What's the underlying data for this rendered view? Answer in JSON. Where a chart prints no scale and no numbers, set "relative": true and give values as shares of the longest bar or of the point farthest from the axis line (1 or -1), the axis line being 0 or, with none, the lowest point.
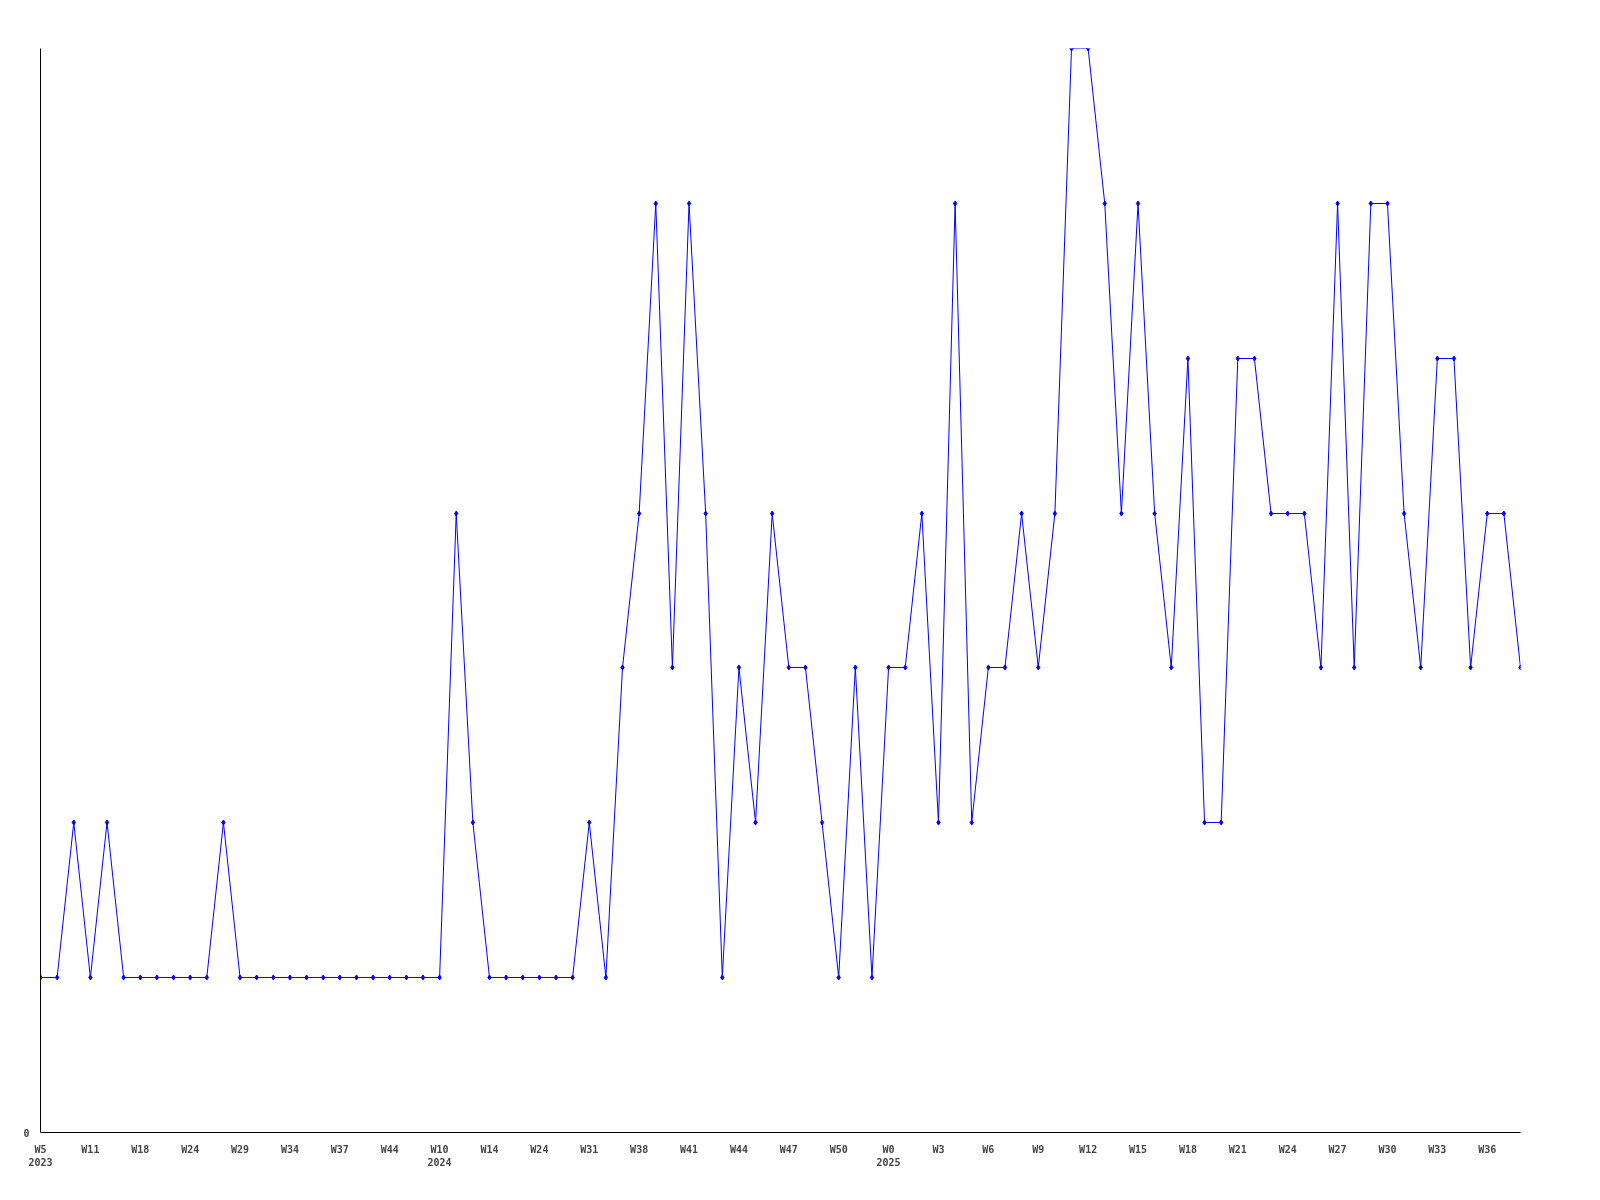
{
  "chart_data": {
    "type": "line",
    "relative": true,
    "color": "#0000ff",
    "marker": "diamond",
    "grid": false,
    "annotations": [
      "0"
    ],
    "categories": [
      "W5\n2023",
      null,
      null,
      "W11",
      null,
      null,
      "W18",
      null,
      null,
      "W24",
      null,
      null,
      "W29",
      null,
      null,
      "W34",
      null,
      null,
      "W37",
      null,
      null,
      "W44",
      null,
      null,
      "W10\n2024",
      null,
      null,
      "W14",
      null,
      null,
      "W24",
      null,
      null,
      "W31",
      null,
      null,
      "W38",
      null,
      null,
      "W41",
      null,
      null,
      "W44",
      null,
      null,
      "W47",
      null,
      null,
      "W50",
      null,
      null,
      "W0\n2025",
      null,
      null,
      "W3",
      null,
      null,
      "W6",
      null,
      null,
      "W9",
      null,
      null,
      "W12",
      null,
      null,
      "W15",
      null,
      null,
      "W18",
      null,
      null,
      "W21",
      null,
      null,
      "W24",
      null,
      null,
      "W27",
      null,
      null,
      "W30",
      null,
      null,
      "W33",
      null,
      null,
      "W36",
      null,
      null
    ],
    "values": [
      0.143,
      0.143,
      0.286,
      0.143,
      0.286,
      0.143,
      0.143,
      0.143,
      0.143,
      0.143,
      0.143,
      0.286,
      0.143,
      0.143,
      0.143,
      0.143,
      0.143,
      0.143,
      0.143,
      0.143,
      0.143,
      0.143,
      0.143,
      0.143,
      0.143,
      0.571,
      0.286,
      0.143,
      0.143,
      0.143,
      0.143,
      0.143,
      0.143,
      0.286,
      0.143,
      0.429,
      0.571,
      0.857,
      0.429,
      0.857,
      0.571,
      0.143,
      0.429,
      0.286,
      0.571,
      0.429,
      0.429,
      0.286,
      0.143,
      0.429,
      0.143,
      0.429,
      0.429,
      0.571,
      0.286,
      0.857,
      0.286,
      0.429,
      0.429,
      0.571,
      0.429,
      0.571,
      1,
      1,
      0.857,
      0.571,
      0.857,
      0.571,
      0.429,
      0.714,
      0.286,
      0.286,
      0.714,
      0.714,
      0.571,
      0.571,
      0.571,
      0.429,
      0.857,
      0.429,
      0.857,
      0.857,
      0.571,
      0.429,
      0.714,
      0.714,
      0.429,
      0.571,
      0.571,
      0.429
    ]
  }
}
